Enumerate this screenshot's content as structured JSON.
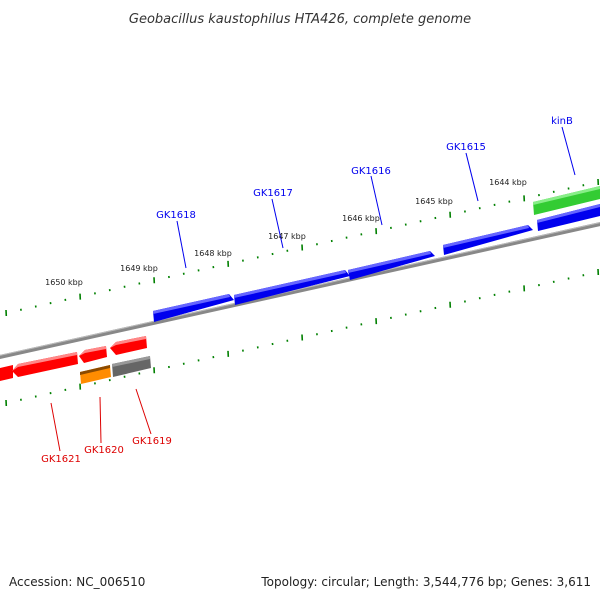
{
  "title": "Geobacillus kaustophilus HTA426, complete genome",
  "footer": {
    "accession": "Accession: NC_006510",
    "summary": "Topology: circular; Length: 3,544,776 bp; Genes: 3,611"
  },
  "ruler_labels": [
    "1650 kbp",
    "1649 kbp",
    "1648 kbp",
    "1647 kbp",
    "1646 kbp",
    "1645 kbp",
    "1644 kbp"
  ],
  "forward_genes": [
    {
      "name": "GK1618",
      "color": "#0000ee"
    },
    {
      "name": "GK1617",
      "color": "#0000ee"
    },
    {
      "name": "GK1616",
      "color": "#0000ee"
    },
    {
      "name": "GK1615",
      "color": "#0000ee"
    },
    {
      "name": "kinB",
      "color": "#0000ee"
    }
  ],
  "reverse_genes": [
    {
      "name": "GK1621",
      "color": "#ff0000"
    },
    {
      "name": "GK1620",
      "color": "#ff8c00"
    },
    {
      "name": "GK1619",
      "color": "#666666"
    }
  ],
  "colors": {
    "forward": "#0000ee",
    "reverse": "#ff0000",
    "orange_feature": "#ff8c00",
    "grey_feature": "#666666",
    "green_feature": "#33cc33",
    "backbone": "#888888",
    "ticks": "#008000"
  }
}
